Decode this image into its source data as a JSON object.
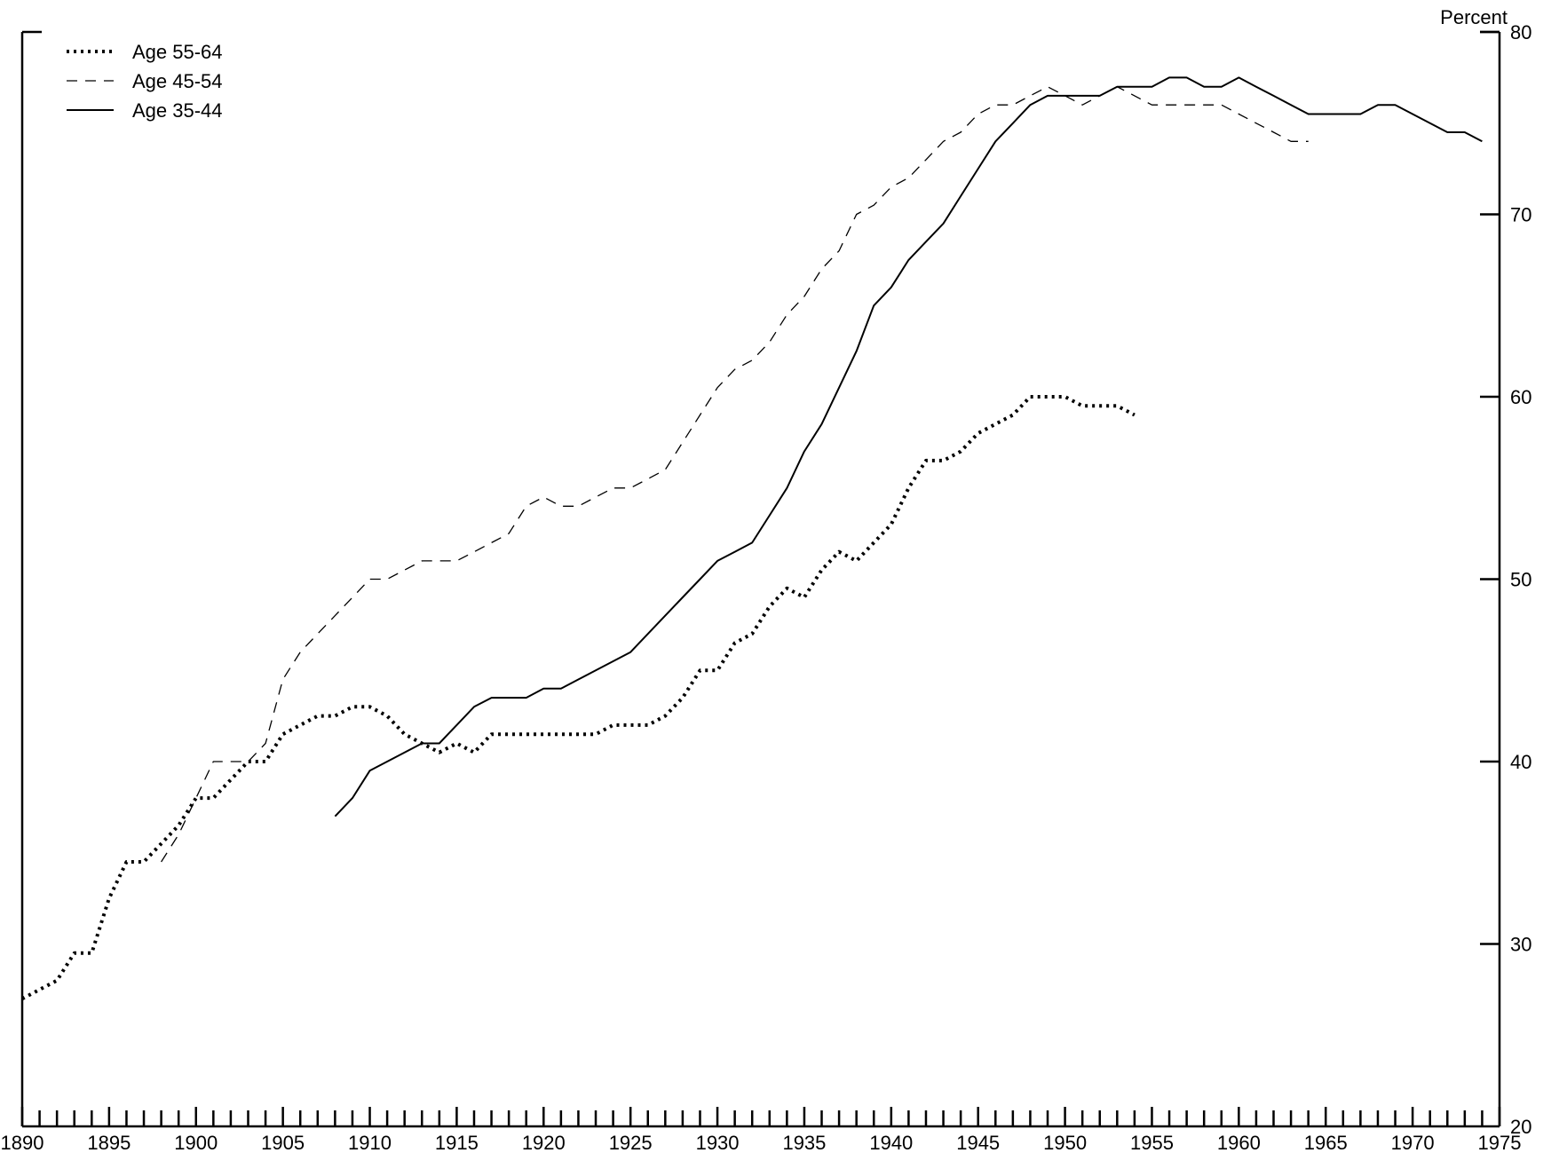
{
  "chart_data": {
    "type": "line",
    "title": "",
    "xlabel": "",
    "ylabel": "Percent",
    "xlim": [
      1890,
      1975
    ],
    "ylim": [
      20,
      80
    ],
    "x_tick_labels": [
      "1890",
      "1895",
      "1900",
      "1905",
      "1910",
      "1915",
      "1920",
      "1925",
      "1930",
      "1935",
      "1940",
      "1945",
      "1950",
      "1955",
      "1960",
      "1965",
      "1970",
      "1975"
    ],
    "x_ticks": [
      1890,
      1895,
      1900,
      1905,
      1910,
      1915,
      1920,
      1925,
      1930,
      1935,
      1940,
      1945,
      1950,
      1955,
      1960,
      1965,
      1970,
      1975
    ],
    "y_tick_labels": [
      "20",
      "30",
      "40",
      "50",
      "60",
      "70",
      "80"
    ],
    "y_ticks": [
      20,
      30,
      40,
      50,
      60,
      70,
      80
    ],
    "y_axis_side": "right",
    "grid": false,
    "legend_position": "top-left",
    "series": [
      {
        "name": "Age 55-64",
        "style": "dotted",
        "x": [
          1890,
          1891,
          1892,
          1893,
          1894,
          1895,
          1896,
          1897,
          1898,
          1899,
          1900,
          1901,
          1902,
          1903,
          1904,
          1905,
          1906,
          1907,
          1908,
          1909,
          1910,
          1911,
          1912,
          1913,
          1914,
          1915,
          1916,
          1917,
          1918,
          1919,
          1920,
          1921,
          1922,
          1923,
          1924,
          1925,
          1926,
          1927,
          1928,
          1929,
          1930,
          1931,
          1932,
          1933,
          1934,
          1935,
          1936,
          1937,
          1938,
          1939,
          1940,
          1941,
          1942,
          1943,
          1944,
          1945,
          1946,
          1947,
          1948,
          1949,
          1950,
          1951,
          1952,
          1953,
          1954
        ],
        "y": [
          27,
          27.5,
          28,
          29.5,
          29.5,
          32.5,
          34.5,
          34.5,
          35.5,
          36.5,
          38,
          38,
          39,
          40,
          40,
          41.5,
          42,
          42.5,
          42.5,
          43,
          43,
          42.5,
          41.5,
          41,
          40.5,
          41,
          40.5,
          41.5,
          41.5,
          41.5,
          41.5,
          41.5,
          41.5,
          41.5,
          42,
          42,
          42,
          42.5,
          43.5,
          45,
          45,
          46.5,
          47,
          48.5,
          49.5,
          49,
          50.5,
          51.5,
          51,
          52,
          53,
          55,
          56.5,
          56.5,
          57,
          58,
          58.5,
          59,
          60,
          60,
          60,
          59.5,
          59.5,
          59.5,
          59
        ]
      },
      {
        "name": "Age 45-54",
        "style": "dashed",
        "x": [
          1898,
          1899,
          1900,
          1901,
          1902,
          1903,
          1904,
          1905,
          1906,
          1907,
          1908,
          1909,
          1910,
          1911,
          1912,
          1913,
          1914,
          1915,
          1916,
          1917,
          1918,
          1919,
          1920,
          1921,
          1922,
          1923,
          1924,
          1925,
          1926,
          1927,
          1928,
          1929,
          1930,
          1931,
          1932,
          1933,
          1934,
          1935,
          1936,
          1937,
          1938,
          1939,
          1940,
          1941,
          1942,
          1943,
          1944,
          1945,
          1946,
          1947,
          1948,
          1949,
          1950,
          1951,
          1952,
          1953,
          1954,
          1955,
          1956,
          1957,
          1958,
          1959,
          1960,
          1961,
          1962,
          1963,
          1964
        ],
        "y": [
          34.5,
          36,
          38,
          40,
          40,
          40,
          41,
          44.5,
          46,
          47,
          48,
          49,
          50,
          50,
          50.5,
          51,
          51,
          51,
          51.5,
          52,
          52.5,
          54,
          54.5,
          54,
          54,
          54.5,
          55,
          55,
          55.5,
          56,
          57.5,
          59,
          60.5,
          61.5,
          62,
          63,
          64.5,
          65.5,
          67,
          68,
          70,
          70.5,
          71.5,
          72,
          73,
          74,
          74.5,
          75.5,
          76,
          76,
          76.5,
          77,
          76.5,
          76,
          76.5,
          77,
          76.5,
          76,
          76,
          76,
          76,
          76,
          75.5,
          75,
          74.5,
          74,
          74
        ]
      },
      {
        "name": "Age 35-44",
        "style": "solid",
        "x": [
          1908,
          1909,
          1910,
          1911,
          1912,
          1913,
          1914,
          1915,
          1916,
          1917,
          1918,
          1919,
          1920,
          1921,
          1922,
          1923,
          1924,
          1925,
          1926,
          1927,
          1928,
          1929,
          1930,
          1931,
          1932,
          1933,
          1934,
          1935,
          1936,
          1937,
          1938,
          1939,
          1940,
          1941,
          1942,
          1943,
          1944,
          1945,
          1946,
          1947,
          1948,
          1949,
          1950,
          1951,
          1952,
          1953,
          1954,
          1955,
          1956,
          1957,
          1958,
          1959,
          1960,
          1961,
          1962,
          1963,
          1964,
          1965,
          1966,
          1967,
          1968,
          1969,
          1970,
          1971,
          1972,
          1973,
          1974
        ],
        "y": [
          37,
          38,
          39.5,
          40,
          40.5,
          41,
          41,
          42,
          43,
          43.5,
          43.5,
          43.5,
          44,
          44,
          44.5,
          45,
          45.5,
          46,
          47,
          48,
          49,
          50,
          51,
          51.5,
          52,
          53.5,
          55,
          57,
          58.5,
          60.5,
          62.5,
          65,
          66,
          67.5,
          68.5,
          69.5,
          71,
          72.5,
          74,
          75,
          76,
          76.5,
          76.5,
          76.5,
          76.5,
          77,
          77,
          77,
          77.5,
          77.5,
          77,
          77,
          77.5,
          77,
          76.5,
          76,
          75.5,
          75.5,
          75.5,
          75.5,
          76,
          76,
          75.5,
          75,
          74.5,
          74.5,
          74
        ]
      }
    ]
  }
}
